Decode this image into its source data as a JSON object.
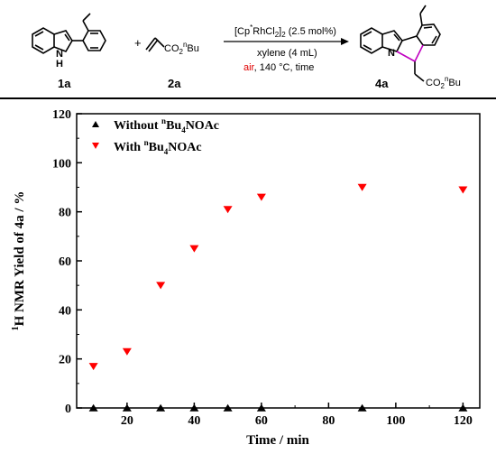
{
  "scheme": {
    "reactant1_label": "1a",
    "reactant2_label": "2a",
    "product_label": "4a",
    "plus": "+",
    "nh_label": "H",
    "n_label": "N",
    "ester_group": {
      "prefix": "CO",
      "sub": "2",
      "sup": "n",
      "suffix": "Bu"
    },
    "catalyst": {
      "part1": "[Cp",
      "sup1": "*",
      "part2": "RhCl",
      "sub": "2",
      "part3": "]",
      "sub2": "2",
      "part4": " (2.5 mol%)"
    },
    "solvent": "xylene (4 mL)",
    "conditions_air": "air",
    "conditions_rest": ", 140 °C, time",
    "air_color": "#e00000"
  },
  "chart_data": {
    "type": "scatter",
    "xlabel": "Time / min",
    "ylabel": {
      "sup": "1",
      "main": "H NMR Yield of 4a / %"
    },
    "xlim": [
      5,
      125
    ],
    "ylim": [
      0,
      120
    ],
    "xticks": [
      20,
      40,
      60,
      80,
      100,
      120
    ],
    "yticks": [
      0,
      20,
      40,
      60,
      80,
      100,
      120
    ],
    "grid": false,
    "legend_position": "top-left",
    "series": [
      {
        "name": {
          "prefix": "Without ",
          "sup": "n",
          "mid": "Bu",
          "sub": "4",
          "suffix": "NOAc"
        },
        "marker": "triangle-up",
        "color": "#000000",
        "x": [
          10,
          20,
          30,
          40,
          50,
          60,
          90,
          120
        ],
        "y": [
          0,
          0,
          0,
          0,
          0,
          0,
          0,
          0
        ]
      },
      {
        "name": {
          "prefix": "With ",
          "sup": "n",
          "mid": "Bu",
          "sub": "4",
          "suffix": "NOAc"
        },
        "marker": "triangle-down",
        "color": "#ff0000",
        "x": [
          10,
          20,
          30,
          40,
          50,
          60,
          90,
          120
        ],
        "y": [
          17,
          23,
          50,
          65,
          81,
          86,
          90,
          89
        ]
      }
    ]
  }
}
